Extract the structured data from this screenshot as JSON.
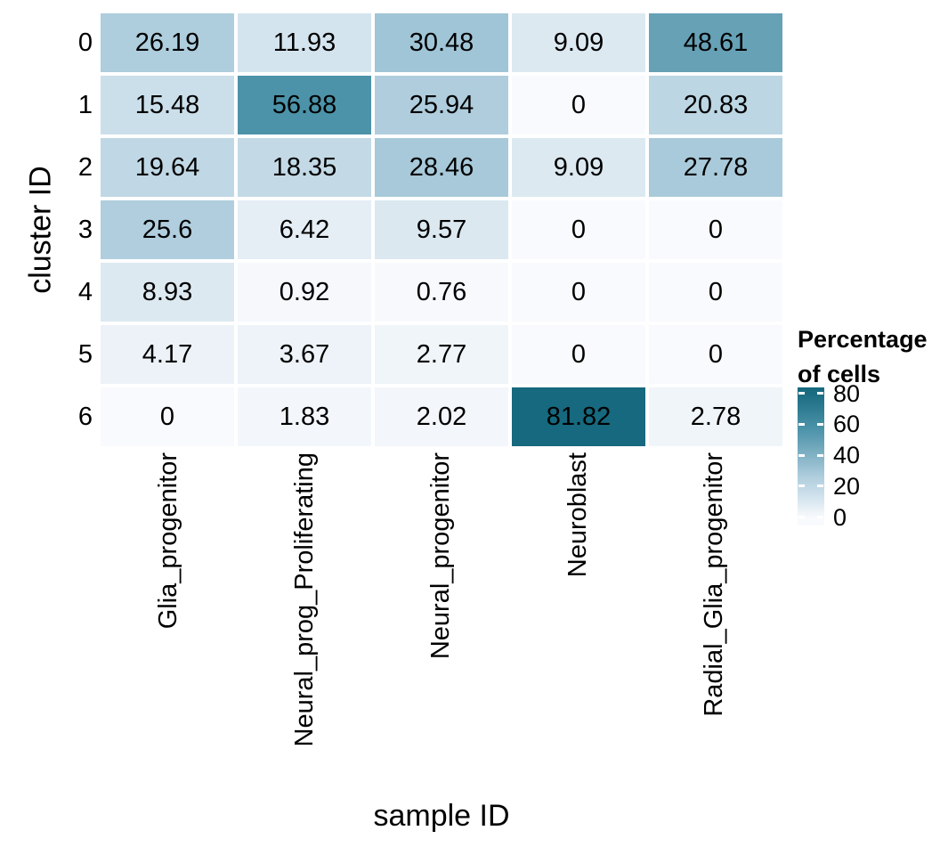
{
  "chart_data": {
    "type": "heatmap",
    "xlabel": "sample ID",
    "ylabel": "cluster ID",
    "categories_x": [
      "Glia_progenitor",
      "Neural_prog_Proliferating",
      "Neural_progenitor",
      "Neuroblast",
      "Radial_Glia_progenitor"
    ],
    "categories_y": [
      "0",
      "1",
      "2",
      "3",
      "4",
      "5",
      "6"
    ],
    "values": [
      [
        26.19,
        11.93,
        30.48,
        9.09,
        48.61
      ],
      [
        15.48,
        56.88,
        25.94,
        0,
        20.83
      ],
      [
        19.64,
        18.35,
        28.46,
        9.09,
        27.78
      ],
      [
        25.6,
        6.42,
        9.57,
        0,
        0
      ],
      [
        8.93,
        0.92,
        0.76,
        0,
        0
      ],
      [
        4.17,
        3.67,
        2.77,
        0,
        0
      ],
      [
        0,
        1.83,
        2.02,
        81.82,
        2.78
      ]
    ],
    "legend": {
      "title": "Percentage of cells",
      "title_lines": [
        "Percentage",
        "of cells"
      ],
      "tick_labels": [
        "80",
        "60",
        "40",
        "20",
        "0"
      ],
      "tick_values": [
        80,
        60,
        40,
        20,
        0
      ]
    },
    "color_scale": {
      "domain": [
        0,
        81.82
      ],
      "stops": [
        {
          "value": 0,
          "color": "#F9FAFD"
        },
        {
          "value": 9.09,
          "color": "#DCE9F1"
        },
        {
          "value": 26.19,
          "color": "#AECDDD"
        },
        {
          "value": 48.61,
          "color": "#66A1B6"
        },
        {
          "value": 56.88,
          "color": "#4C93A9"
        },
        {
          "value": 81.82,
          "color": "#16697E"
        }
      ]
    },
    "layout": {
      "grid_on": false,
      "legend_position": "right",
      "cell_gap_color": "#FFFFFF",
      "text_color": "#000000"
    }
  }
}
